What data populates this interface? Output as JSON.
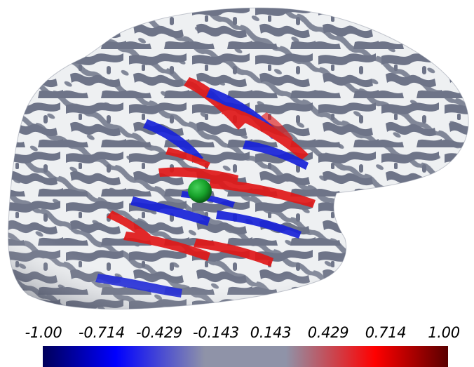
{
  "figure": {
    "surface_base_color": "#eef0f2",
    "sulcus_color": "#6e7488",
    "electrode_color": "#17a22a",
    "overlay_positive_color": "#e01818",
    "overlay_negative_color": "#1822d8"
  },
  "colorbar": {
    "ticks": [
      "-1.00",
      "-0.714",
      "-0.429",
      "-0.143",
      "0.143",
      "0.429",
      "0.714",
      "1.00"
    ],
    "range": [
      -1.0,
      1.0
    ],
    "colors": [
      "#00005a",
      "#0000ff",
      "#8f93a8",
      "#8f93a8",
      "#ff0000",
      "#5a0000"
    ]
  }
}
